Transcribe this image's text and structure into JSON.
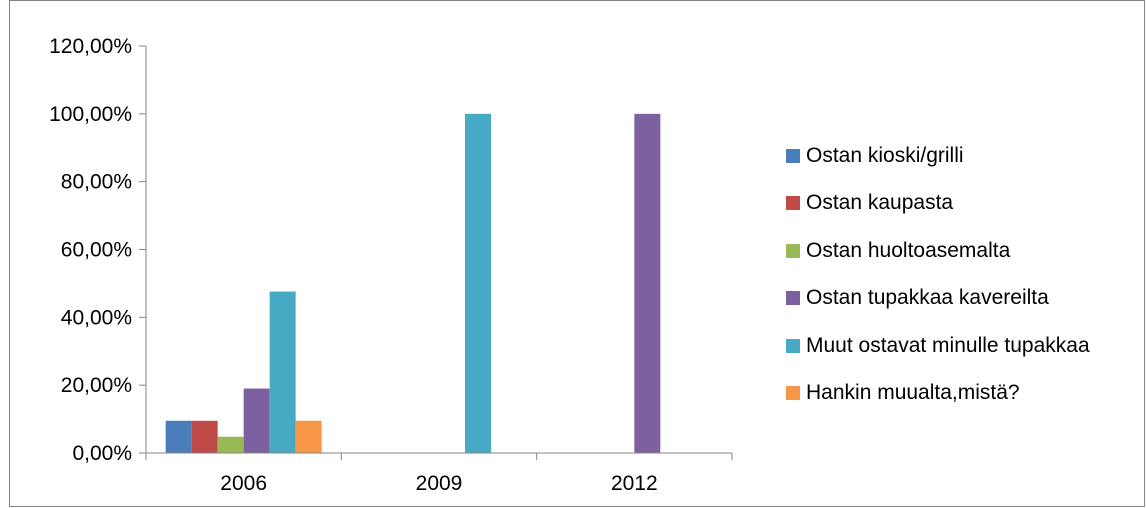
{
  "chart_data": {
    "type": "bar",
    "categories": [
      "2006",
      "2009",
      "2012"
    ],
    "ylim": [
      0,
      1.2
    ],
    "ytick_step": 0.2,
    "ytick_labels": [
      "0,00%",
      "20,00%",
      "40,00%",
      "60,00%",
      "80,00%",
      "100,00%",
      "120,00%"
    ],
    "series": [
      {
        "name": "Ostan kioski/grilli",
        "color": "#4A7EBB",
        "values": [
          0.095,
          0,
          0
        ]
      },
      {
        "name": "Ostan kaupasta",
        "color": "#BE4B48",
        "values": [
          0.095,
          0,
          0
        ]
      },
      {
        "name": "Ostan huoltoasemalta",
        "color": "#98B954",
        "values": [
          0.048,
          0,
          0
        ]
      },
      {
        "name": "Ostan tupakkaa kavereilta",
        "color": "#7D60A0",
        "values": [
          0.19,
          0,
          1.0
        ]
      },
      {
        "name": "Muut ostavat minulle tupakkaa",
        "color": "#46AAC5",
        "values": [
          0.476,
          1.0,
          0
        ]
      },
      {
        "name": "Hankin muualta,mistä?",
        "color": "#F79646",
        "values": [
          0.095,
          0,
          0
        ]
      }
    ],
    "legend_position": "right",
    "grid": false
  }
}
